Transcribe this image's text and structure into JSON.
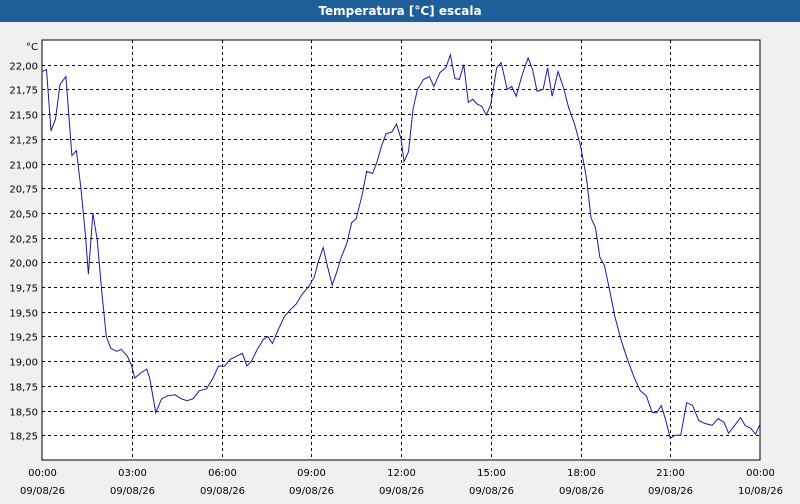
{
  "window": {
    "title": "Temperatura [°C] escala"
  },
  "chart_data": {
    "type": "line",
    "title": "Temperatura [°C] escala",
    "ylabel": "°C",
    "xlabel": "",
    "ylim": [
      18.0,
      22.25
    ],
    "grid": true,
    "colors": {
      "line": "#1a1aa6",
      "plot_background": "#ffffff",
      "grid": "#000000",
      "frame": "#000000"
    },
    "y_ticks": [
      {
        "value": 18.25,
        "label": "18,25"
      },
      {
        "value": 18.5,
        "label": "18,50"
      },
      {
        "value": 18.75,
        "label": "18,75"
      },
      {
        "value": 19.0,
        "label": "19,00"
      },
      {
        "value": 19.25,
        "label": "19,25"
      },
      {
        "value": 19.5,
        "label": "19,50"
      },
      {
        "value": 19.75,
        "label": "19,75"
      },
      {
        "value": 20.0,
        "label": "20,00"
      },
      {
        "value": 20.25,
        "label": "20,25"
      },
      {
        "value": 20.5,
        "label": "20,50"
      },
      {
        "value": 20.75,
        "label": "20,75"
      },
      {
        "value": 21.0,
        "label": "21,00"
      },
      {
        "value": 21.25,
        "label": "21,25"
      },
      {
        "value": 21.5,
        "label": "21,50"
      },
      {
        "value": 21.75,
        "label": "21,75"
      },
      {
        "value": 22.0,
        "label": "22,00"
      }
    ],
    "x_ticks": [
      {
        "hours": 0,
        "time": "00:00",
        "date": "09/08/26"
      },
      {
        "hours": 3,
        "time": "03:00",
        "date": "09/08/26"
      },
      {
        "hours": 6,
        "time": "06:00",
        "date": "09/08/26"
      },
      {
        "hours": 9,
        "time": "09:00",
        "date": "09/08/26"
      },
      {
        "hours": 12,
        "time": "12:00",
        "date": "09/08/26"
      },
      {
        "hours": 15,
        "time": "15:00",
        "date": "09/08/26"
      },
      {
        "hours": 18,
        "time": "18:00",
        "date": "09/08/26"
      },
      {
        "hours": 21,
        "time": "21:00",
        "date": "09/08/26"
      },
      {
        "hours": 24,
        "time": "00:00",
        "date": "10/08/26"
      }
    ],
    "xlim_hours": [
      0,
      24
    ],
    "series": [
      {
        "points": [
          [
            0.0,
            21.93
          ],
          [
            0.15,
            21.95
          ],
          [
            0.3,
            21.33
          ],
          [
            0.45,
            21.45
          ],
          [
            0.6,
            21.8
          ],
          [
            0.8,
            21.88
          ],
          [
            1.0,
            21.08
          ],
          [
            1.15,
            21.13
          ],
          [
            1.3,
            20.75
          ],
          [
            1.45,
            20.28
          ],
          [
            1.55,
            19.88
          ],
          [
            1.7,
            20.5
          ],
          [
            1.85,
            20.22
          ],
          [
            2.0,
            19.7
          ],
          [
            2.15,
            19.25
          ],
          [
            2.3,
            19.13
          ],
          [
            2.5,
            19.1
          ],
          [
            2.65,
            19.12
          ],
          [
            2.85,
            19.05
          ],
          [
            3.0,
            18.95
          ],
          [
            3.1,
            18.83
          ],
          [
            3.3,
            18.88
          ],
          [
            3.5,
            18.92
          ],
          [
            3.6,
            18.83
          ],
          [
            3.8,
            18.48
          ],
          [
            4.0,
            18.62
          ],
          [
            4.2,
            18.65
          ],
          [
            4.45,
            18.66
          ],
          [
            4.65,
            18.62
          ],
          [
            4.85,
            18.6
          ],
          [
            5.05,
            18.62
          ],
          [
            5.25,
            18.7
          ],
          [
            5.5,
            18.72
          ],
          [
            5.7,
            18.82
          ],
          [
            5.9,
            18.95
          ],
          [
            6.1,
            18.95
          ],
          [
            6.3,
            19.02
          ],
          [
            6.5,
            19.05
          ],
          [
            6.7,
            19.08
          ],
          [
            6.85,
            18.95
          ],
          [
            7.0,
            19.0
          ],
          [
            7.2,
            19.12
          ],
          [
            7.4,
            19.22
          ],
          [
            7.55,
            19.25
          ],
          [
            7.7,
            19.18
          ],
          [
            7.9,
            19.32
          ],
          [
            8.1,
            19.45
          ],
          [
            8.3,
            19.52
          ],
          [
            8.5,
            19.58
          ],
          [
            8.7,
            19.68
          ],
          [
            8.9,
            19.75
          ],
          [
            9.1,
            19.85
          ],
          [
            9.25,
            20.02
          ],
          [
            9.4,
            20.15
          ],
          [
            9.55,
            19.95
          ],
          [
            9.7,
            19.77
          ],
          [
            9.85,
            19.9
          ],
          [
            10.0,
            20.05
          ],
          [
            10.2,
            20.2
          ],
          [
            10.35,
            20.4
          ],
          [
            10.5,
            20.44
          ],
          [
            10.7,
            20.68
          ],
          [
            10.85,
            20.92
          ],
          [
            11.05,
            20.9
          ],
          [
            11.2,
            21.02
          ],
          [
            11.35,
            21.18
          ],
          [
            11.5,
            21.3
          ],
          [
            11.7,
            21.32
          ],
          [
            11.85,
            21.4
          ],
          [
            12.0,
            21.25
          ],
          [
            12.1,
            21.02
          ],
          [
            12.25,
            21.12
          ],
          [
            12.4,
            21.55
          ],
          [
            12.55,
            21.75
          ],
          [
            12.75,
            21.85
          ],
          [
            12.95,
            21.88
          ],
          [
            13.1,
            21.78
          ],
          [
            13.3,
            21.92
          ],
          [
            13.5,
            21.97
          ],
          [
            13.65,
            22.1
          ],
          [
            13.8,
            21.86
          ],
          [
            13.95,
            21.85
          ],
          [
            14.1,
            22.0
          ],
          [
            14.25,
            21.62
          ],
          [
            14.4,
            21.65
          ],
          [
            14.55,
            21.6
          ],
          [
            14.7,
            21.58
          ],
          [
            14.85,
            21.49
          ],
          [
            15.0,
            21.6
          ],
          [
            15.2,
            21.97
          ],
          [
            15.35,
            22.02
          ],
          [
            15.55,
            21.75
          ],
          [
            15.7,
            21.78
          ],
          [
            15.85,
            21.68
          ],
          [
            16.05,
            21.9
          ],
          [
            16.25,
            22.07
          ],
          [
            16.4,
            21.95
          ],
          [
            16.55,
            21.73
          ],
          [
            16.75,
            21.75
          ],
          [
            16.9,
            21.97
          ],
          [
            17.05,
            21.68
          ],
          [
            17.25,
            21.93
          ],
          [
            17.45,
            21.75
          ],
          [
            17.6,
            21.57
          ],
          [
            17.8,
            21.4
          ],
          [
            18.0,
            21.18
          ],
          [
            18.2,
            20.85
          ],
          [
            18.35,
            20.45
          ],
          [
            18.5,
            20.35
          ],
          [
            18.65,
            20.05
          ],
          [
            18.8,
            19.97
          ],
          [
            19.0,
            19.68
          ],
          [
            19.15,
            19.45
          ],
          [
            19.35,
            19.22
          ],
          [
            19.5,
            19.08
          ],
          [
            19.65,
            18.95
          ],
          [
            19.8,
            18.83
          ],
          [
            20.0,
            18.7
          ],
          [
            20.2,
            18.65
          ],
          [
            20.4,
            18.48
          ],
          [
            20.55,
            18.48
          ],
          [
            20.7,
            18.55
          ],
          [
            20.85,
            18.4
          ],
          [
            21.0,
            18.22
          ],
          [
            21.15,
            18.25
          ],
          [
            21.35,
            18.25
          ],
          [
            21.55,
            18.58
          ],
          [
            21.75,
            18.55
          ],
          [
            21.95,
            18.4
          ],
          [
            22.15,
            18.37
          ],
          [
            22.4,
            18.35
          ],
          [
            22.6,
            18.42
          ],
          [
            22.8,
            18.38
          ],
          [
            22.95,
            18.27
          ],
          [
            23.15,
            18.35
          ],
          [
            23.35,
            18.43
          ],
          [
            23.5,
            18.35
          ],
          [
            23.7,
            18.32
          ],
          [
            23.85,
            18.26
          ],
          [
            24.0,
            18.36
          ]
        ]
      }
    ]
  }
}
